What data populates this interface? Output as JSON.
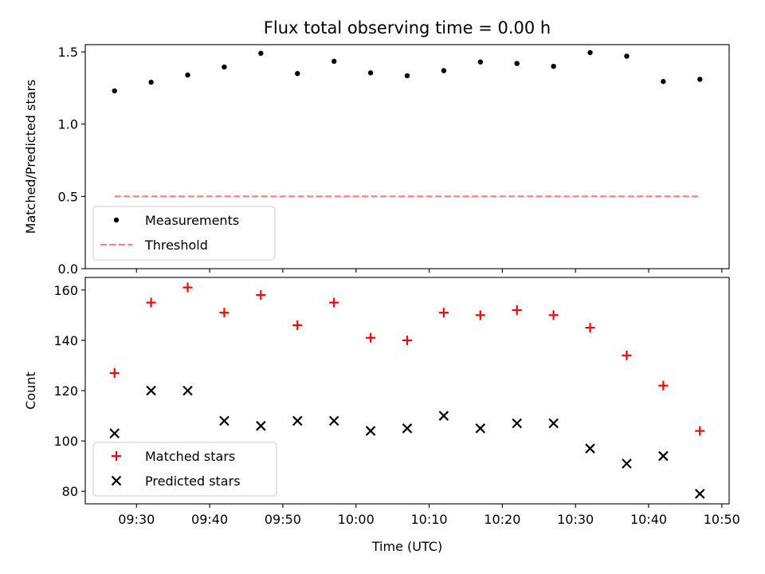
{
  "figure": {
    "title": "Flux total observing time = 0.00 h"
  },
  "chart_data": [
    {
      "type": "scatter",
      "ylabel": "Matched/Predicted stars",
      "xlim": [
        "09:23",
        "10:51"
      ],
      "ylim": [
        0,
        1.55
      ],
      "yticks": [
        0.0,
        0.5,
        1.0,
        1.5
      ],
      "ytick_labels": [
        "0.0",
        "0.5",
        "1.0",
        "1.5"
      ],
      "legend_position": "lower-left",
      "x": [
        "09:27",
        "09:32",
        "09:37",
        "09:42",
        "09:47",
        "09:52",
        "09:57",
        "10:02",
        "10:07",
        "10:12",
        "10:17",
        "10:22",
        "10:27",
        "10:32",
        "10:37",
        "10:42",
        "10:47"
      ],
      "series": [
        {
          "name": "Measurements",
          "marker": "dot",
          "color": "#000000",
          "values": [
            1.23,
            1.29,
            1.34,
            1.395,
            1.49,
            1.35,
            1.435,
            1.355,
            1.335,
            1.37,
            1.43,
            1.42,
            1.4,
            1.495,
            1.47,
            1.295,
            1.31
          ]
        },
        {
          "name": "Threshold",
          "marker": "dashed-line",
          "color": "#ff7f7f",
          "values": [
            0.5,
            0.5,
            0.5,
            0.5,
            0.5,
            0.5,
            0.5,
            0.5,
            0.5,
            0.5,
            0.5,
            0.5,
            0.5,
            0.5,
            0.5,
            0.5,
            0.5
          ]
        }
      ]
    },
    {
      "type": "scatter",
      "xlabel": "Time (UTC)",
      "ylabel": "Count",
      "xlim": [
        "09:23",
        "10:51"
      ],
      "ylim": [
        75,
        165
      ],
      "yticks": [
        80,
        100,
        120,
        140,
        160
      ],
      "ytick_labels": [
        "80",
        "100",
        "120",
        "140",
        "160"
      ],
      "xticks": [
        "09:30",
        "09:40",
        "09:50",
        "10:00",
        "10:10",
        "10:20",
        "10:30",
        "10:40",
        "10:50"
      ],
      "legend_position": "lower-left",
      "x": [
        "09:27",
        "09:32",
        "09:37",
        "09:42",
        "09:47",
        "09:52",
        "09:57",
        "10:02",
        "10:07",
        "10:12",
        "10:17",
        "10:22",
        "10:27",
        "10:32",
        "10:37",
        "10:42",
        "10:47"
      ],
      "series": [
        {
          "name": "Matched stars",
          "marker": "plus",
          "color": "#ff0000",
          "values": [
            127,
            155,
            161,
            151,
            158,
            146,
            155,
            141,
            140,
            151,
            150,
            152,
            150,
            145,
            134,
            122,
            104
          ]
        },
        {
          "name": "Predicted stars",
          "marker": "x",
          "color": "#000000",
          "values": [
            103,
            120,
            120,
            108,
            106,
            108,
            108,
            104,
            105,
            110,
            105,
            107,
            107,
            97,
            91,
            94,
            79
          ]
        }
      ]
    }
  ]
}
